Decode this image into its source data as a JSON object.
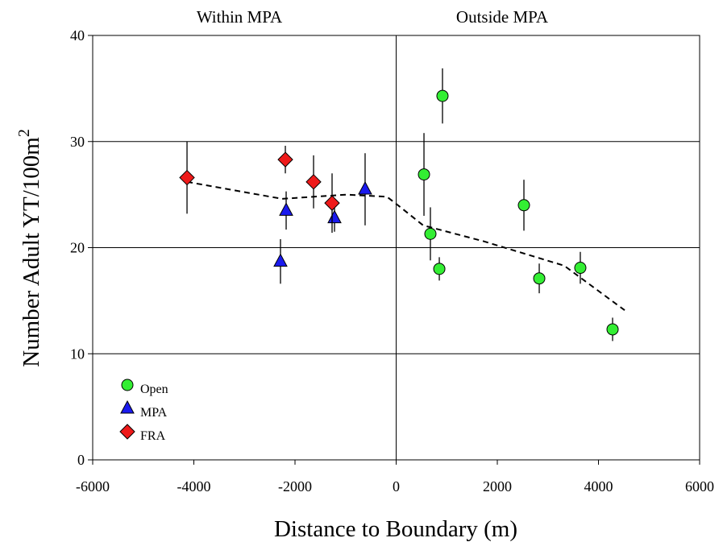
{
  "chart_data": {
    "type": "scatter",
    "xlabel": "Distance to Boundary (m)",
    "ylabel": "Number Adult YT/100m",
    "ylabel_superscript": "2",
    "annotations": [
      "Within MPA",
      "Outside MPA"
    ],
    "xlim": [
      -6000,
      6000
    ],
    "xticks": [
      -6000,
      -4000,
      -2000,
      0,
      2000,
      4000,
      6000
    ],
    "ylim": [
      0,
      40
    ],
    "yticks": [
      0,
      10,
      20,
      30,
      40
    ],
    "grid": true,
    "legend": "lower left",
    "series": [
      {
        "name": "Open",
        "color": "#33ee33",
        "marker": "circle",
        "x": [
          550,
          916,
          677,
          853,
          2526,
          2829,
          3641,
          4279
        ],
        "values": [
          26.9,
          34.3,
          21.3,
          18.0,
          24.0,
          17.1,
          18.1,
          12.3
        ],
        "errors": [
          3.9,
          2.6,
          2.5,
          1.1,
          2.4,
          1.4,
          1.5,
          1.1
        ]
      },
      {
        "name": "MPA",
        "color": "#1a1aee",
        "marker": "triangle",
        "x": [
          -2287,
          -2175,
          -1219,
          -614
        ],
        "values": [
          18.7,
          23.5,
          22.8,
          25.5
        ],
        "errors": [
          2.1,
          1.8,
          1.3,
          3.4
        ]
      },
      {
        "name": "FRA",
        "color": "#ee1a1a",
        "marker": "diamond",
        "x": [
          -4135,
          -2191,
          -1633,
          -1267
        ],
        "values": [
          26.6,
          28.3,
          26.2,
          24.2
        ],
        "errors": [
          3.4,
          1.3,
          2.5,
          2.8
        ]
      }
    ],
    "trend": {
      "x": [
        -4135,
        -2255,
        -980,
        -183,
        88,
        534,
        1729,
        3323,
        4518
      ],
      "values": [
        26.2,
        24.6,
        25.0,
        24.8,
        23.8,
        22.1,
        20.6,
        18.3,
        14.1
      ]
    }
  }
}
